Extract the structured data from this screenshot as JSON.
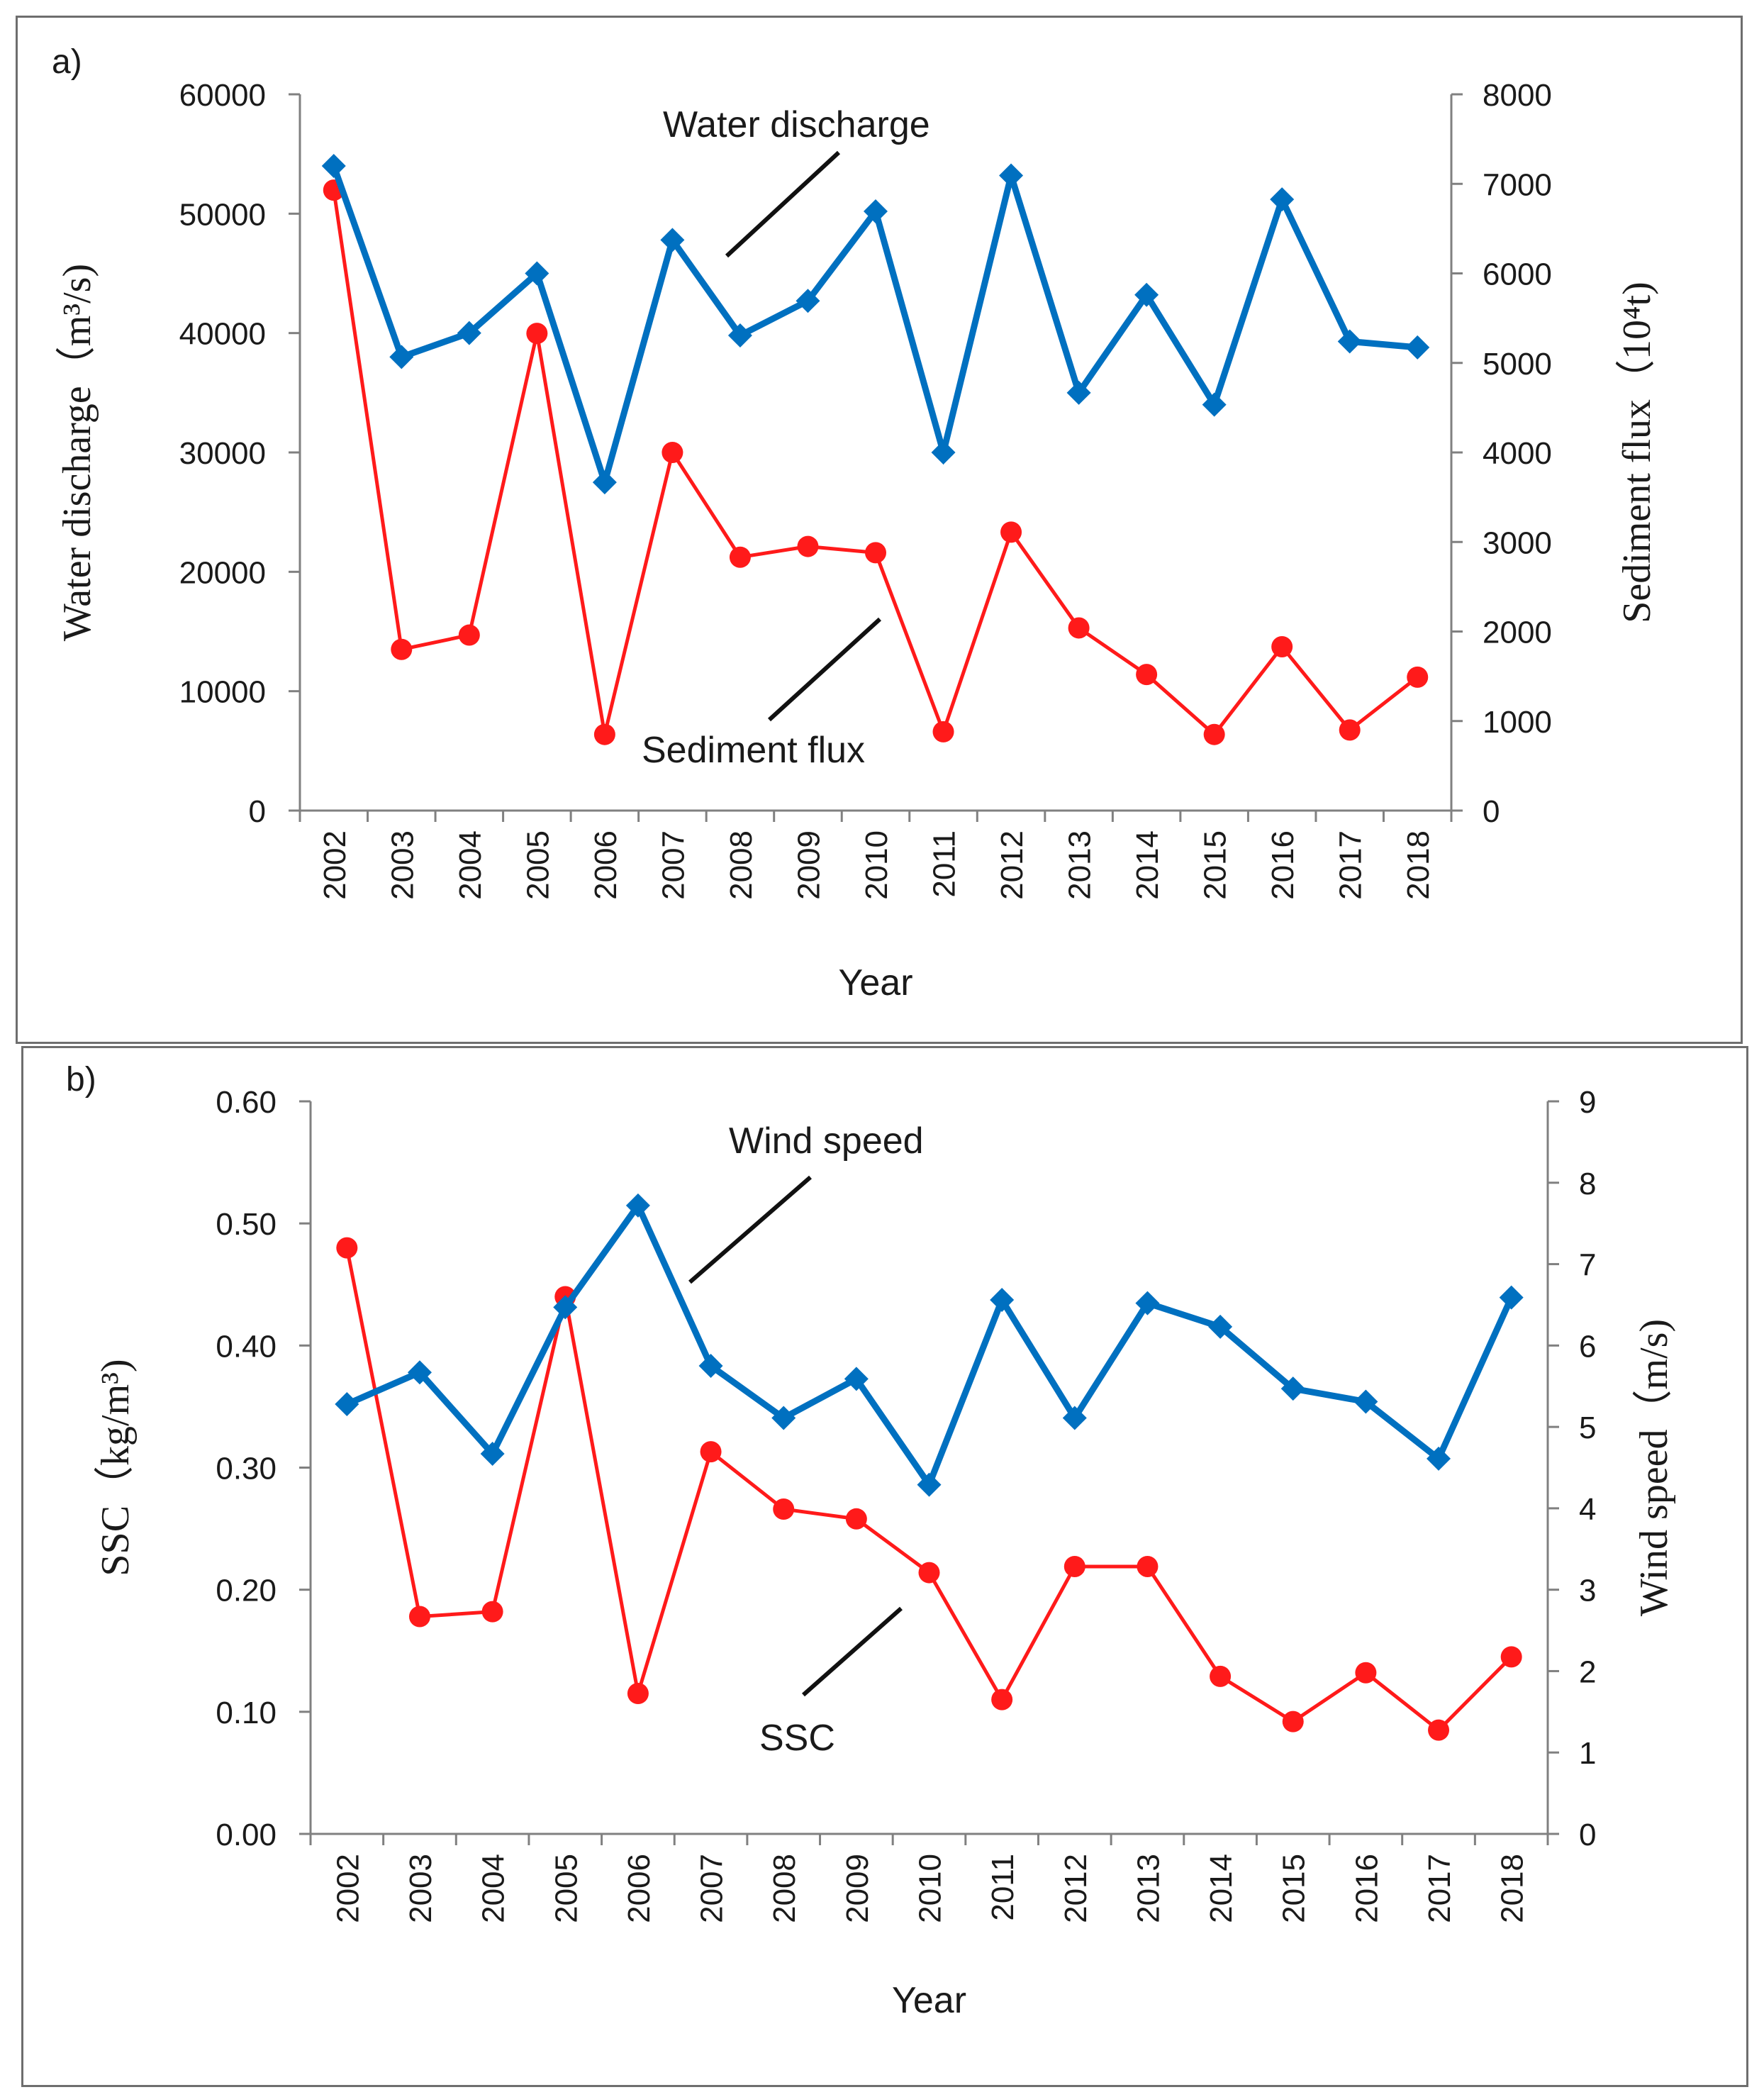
{
  "chart_data": [
    {
      "panel_label": "a)",
      "type": "line",
      "categories": [
        "2002",
        "2003",
        "2004",
        "2005",
        "2006",
        "2007",
        "2008",
        "2009",
        "2010",
        "2011",
        "2012",
        "2013",
        "2014",
        "2015",
        "2016",
        "2017",
        "2018"
      ],
      "xlabel": "Year",
      "ylabel_left": "Water discharge（m³/s)",
      "ylabel_right": "Sediment flux（10⁴t)",
      "ylim_left": [
        0,
        60000
      ],
      "yticks_left": [
        "0",
        "10000",
        "20000",
        "30000",
        "40000",
        "50000",
        "60000"
      ],
      "ylim_right": [
        0,
        8000
      ],
      "yticks_right": [
        "0",
        "1000",
        "2000",
        "3000",
        "4000",
        "5000",
        "6000",
        "7000",
        "8000"
      ],
      "series": [
        {
          "name": "Water discharge",
          "axis": "left",
          "color": "#0070c0",
          "marker": "diamond",
          "values": [
            54000,
            38000,
            40000,
            45000,
            27500,
            47800,
            39800,
            42700,
            50200,
            30000,
            53200,
            35000,
            43200,
            34000,
            51200,
            39300,
            38800
          ]
        },
        {
          "name": "Sediment flux",
          "axis": "right",
          "color": "#ff1a1a",
          "marker": "circle",
          "values": [
            6930,
            1800,
            1960,
            5330,
            850,
            4000,
            2830,
            2950,
            2880,
            880,
            3110,
            2040,
            1520,
            850,
            1830,
            900,
            1490
          ]
        }
      ],
      "annotations": [
        "Water discharge",
        "Sediment flux"
      ]
    },
    {
      "panel_label": "b)",
      "type": "line",
      "categories": [
        "2002",
        "2003",
        "2004",
        "2005",
        "2006",
        "2007",
        "2008",
        "2009",
        "2010",
        "2011",
        "2012",
        "2013",
        "2014",
        "2015",
        "2016",
        "2017",
        "2018"
      ],
      "xlabel": "Year",
      "ylabel_left": "SSC（kg/m³)",
      "ylabel_right": "Wind speed（m/s)",
      "ylim_left": [
        0,
        0.6
      ],
      "yticks_left": [
        "0.00",
        "0.10",
        "0.20",
        "0.30",
        "0.40",
        "0.50",
        "0.60"
      ],
      "ylim_right": [
        0,
        9
      ],
      "yticks_right": [
        "0",
        "1",
        "2",
        "3",
        "4",
        "5",
        "6",
        "7",
        "8",
        "9"
      ],
      "series": [
        {
          "name": "Wind speed",
          "axis": "right",
          "color": "#0070c0",
          "marker": "diamond",
          "values": [
            5.28,
            5.67,
            4.67,
            6.47,
            7.72,
            5.75,
            5.11,
            5.59,
            4.29,
            6.56,
            5.11,
            6.52,
            6.23,
            5.47,
            5.31,
            4.61,
            6.59
          ]
        },
        {
          "name": "SSC",
          "axis": "left",
          "color": "#ff1a1a",
          "marker": "circle",
          "values": [
            0.48,
            0.178,
            0.182,
            0.44,
            0.115,
            0.313,
            0.266,
            0.258,
            0.214,
            0.11,
            0.219,
            0.219,
            0.129,
            0.092,
            0.132,
            0.085,
            0.145
          ]
        }
      ],
      "annotations": [
        "Wind speed",
        "SSC"
      ]
    }
  ]
}
